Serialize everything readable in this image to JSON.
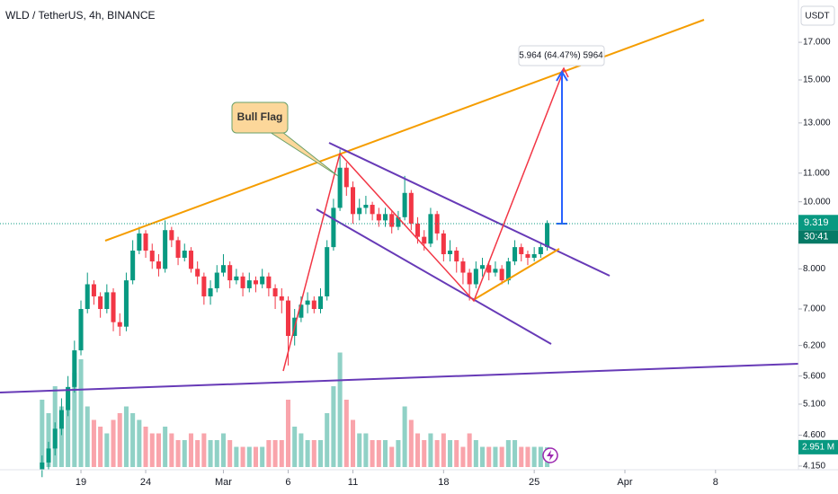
{
  "chart_data": {
    "type": "candlestick",
    "title": "WLD / TetherUS, 4h, BINANCE",
    "currency": "USDT",
    "log_scale": true,
    "grid": false,
    "up_color": "#089981",
    "down_color": "#f23645",
    "annotations": {
      "pattern": "Bull Flag",
      "measure": "5.964 (64.47%) 5964",
      "countdown": "30:41"
    },
    "x": [
      -3,
      -2.5,
      -2,
      -1.5,
      -1,
      -0.5,
      0,
      0.5,
      1,
      1.5,
      2,
      2.5,
      3,
      3.5,
      4,
      4.5,
      5,
      5.5,
      6,
      6.5,
      7,
      7.5,
      8,
      8.5,
      9,
      9.5,
      10,
      10.5,
      11,
      11.5,
      12,
      12.5,
      13,
      13.5,
      14,
      14.5,
      15,
      15.5,
      16,
      16.5,
      17,
      17.5,
      18,
      18.5,
      19,
      19.5,
      20,
      20.5,
      21,
      21.5,
      22,
      22.5,
      23,
      23.5,
      24,
      24.5,
      25,
      25.5,
      26,
      26.5,
      27,
      27.5,
      28,
      28.5,
      29,
      29.5,
      30,
      30.5,
      31,
      31.5,
      32,
      32.5,
      33,
      33.5,
      34,
      34.5,
      35,
      35.5,
      36
    ],
    "open": [
      4.1,
      4.2,
      4.4,
      4.7,
      5.0,
      5.4,
      6.1,
      7.0,
      7.6,
      7.3,
      7.0,
      7.4,
      6.7,
      6.6,
      7.7,
      8.5,
      9.0,
      8.5,
      8.2,
      8.0,
      9.1,
      8.8,
      8.3,
      8.5,
      8.0,
      7.8,
      7.3,
      7.5,
      7.9,
      8.1,
      7.7,
      7.8,
      7.5,
      7.7,
      7.6,
      7.8,
      7.5,
      7.3,
      7.2,
      6.4,
      6.8,
      7.1,
      7.2,
      7.0,
      7.3,
      8.6,
      9.8,
      11.2,
      10.5,
      9.6,
      9.8,
      9.9,
      9.6,
      9.4,
      9.6,
      9.2,
      9.5,
      10.3,
      9.3,
      8.9,
      8.7,
      9.6,
      9.0,
      8.4,
      8.5,
      8.2,
      7.9,
      7.6,
      8.0,
      8.1,
      7.9,
      8.0,
      7.7,
      8.2,
      8.6,
      8.4,
      8.3,
      8.4,
      8.6
    ],
    "high": [
      4.3,
      4.5,
      4.8,
      5.2,
      5.6,
      6.3,
      7.2,
      7.9,
      7.7,
      7.4,
      7.6,
      7.5,
      6.9,
      7.9,
      8.8,
      9.2,
      9.1,
      8.7,
      8.4,
      9.4,
      9.2,
      8.9,
      8.7,
      8.6,
      8.2,
      7.9,
      7.7,
      8.1,
      8.4,
      8.2,
      8.0,
      7.9,
      7.9,
      7.8,
      8.0,
      7.9,
      7.6,
      7.5,
      7.3,
      7.0,
      7.3,
      7.4,
      7.3,
      7.5,
      8.8,
      10.1,
      11.9,
      11.4,
      10.7,
      10.1,
      10.2,
      10.0,
      9.8,
      9.8,
      9.7,
      9.7,
      10.9,
      10.4,
      9.5,
      9.1,
      9.8,
      9.7,
      9.1,
      8.8,
      8.6,
      8.3,
      8.0,
      8.2,
      8.3,
      8.2,
      8.2,
      8.1,
      8.3,
      8.8,
      8.7,
      8.5,
      8.6,
      8.7,
      9.4
    ],
    "low": [
      4.0,
      4.1,
      4.3,
      4.6,
      4.9,
      5.3,
      6.0,
      6.9,
      7.1,
      6.8,
      6.9,
      6.5,
      6.4,
      6.5,
      7.6,
      8.4,
      8.3,
      8.0,
      7.8,
      7.9,
      8.6,
      8.1,
      8.2,
      7.9,
      7.6,
      7.1,
      7.1,
      7.4,
      7.8,
      7.5,
      7.6,
      7.3,
      7.4,
      7.4,
      7.5,
      7.3,
      7.0,
      6.9,
      5.8,
      6.2,
      6.7,
      6.9,
      6.9,
      6.9,
      7.2,
      8.5,
      9.7,
      10.2,
      9.3,
      9.4,
      9.6,
      9.4,
      9.2,
      9.2,
      9.0,
      9.1,
      9.4,
      9.1,
      8.7,
      8.5,
      8.6,
      8.8,
      8.2,
      8.2,
      7.9,
      7.6,
      7.2,
      7.5,
      7.8,
      7.7,
      7.8,
      7.6,
      7.6,
      8.1,
      8.2,
      8.1,
      8.2,
      8.3,
      8.5
    ],
    "close": [
      4.2,
      4.4,
      4.7,
      5.0,
      5.4,
      6.1,
      7.0,
      7.6,
      7.3,
      7.0,
      7.4,
      6.7,
      6.6,
      7.7,
      8.5,
      9.0,
      8.5,
      8.2,
      8.0,
      9.1,
      8.8,
      8.3,
      8.5,
      8.0,
      7.8,
      7.3,
      7.5,
      7.9,
      8.1,
      7.7,
      7.8,
      7.5,
      7.7,
      7.6,
      7.8,
      7.5,
      7.3,
      7.2,
      6.4,
      6.8,
      7.1,
      7.2,
      7.0,
      7.3,
      8.6,
      9.8,
      11.2,
      10.5,
      9.6,
      9.8,
      9.9,
      9.6,
      9.4,
      9.6,
      9.2,
      9.5,
      10.3,
      9.3,
      8.9,
      8.7,
      9.6,
      9.0,
      8.4,
      8.5,
      8.2,
      7.9,
      7.6,
      8.0,
      8.1,
      7.9,
      8.0,
      7.7,
      8.2,
      8.6,
      8.4,
      8.3,
      8.4,
      8.6,
      9.319
    ],
    "volume": [
      10,
      8,
      12,
      9,
      11,
      14,
      16,
      9,
      7,
      6,
      5,
      7,
      8,
      9,
      8,
      7,
      6,
      5,
      5,
      6,
      5,
      4,
      4,
      5,
      4,
      5,
      4,
      4,
      5,
      4,
      3,
      3,
      3,
      3,
      3,
      4,
      4,
      4,
      10,
      6,
      5,
      4,
      4,
      4,
      8,
      12,
      17,
      10,
      7,
      5,
      5,
      4,
      4,
      4,
      3,
      4,
      9,
      7,
      5,
      4,
      5,
      4,
      5,
      4,
      4,
      3,
      5,
      4,
      3,
      3,
      3,
      3,
      4,
      4,
      3,
      3,
      3,
      3,
      2.951
    ],
    "volume_value_label": "2.951 M",
    "vlim": [
      0,
      20
    ],
    "xlim": [
      -6.25,
      55.4
    ],
    "xticks": [
      {
        "value": 0,
        "label": "19"
      },
      {
        "value": 5,
        "label": "24"
      },
      {
        "value": 11,
        "label": "Mar"
      },
      {
        "value": 16,
        "label": "6"
      },
      {
        "value": 21,
        "label": "11"
      },
      {
        "value": 28,
        "label": "18"
      },
      {
        "value": 35,
        "label": "25"
      },
      {
        "value": 42,
        "label": "Apr"
      },
      {
        "value": 49,
        "label": "8"
      }
    ],
    "ylim": [
      4.1,
      19.57
    ],
    "yticks": [
      {
        "value": 17,
        "label": "17.000"
      },
      {
        "value": 15,
        "label": "15.000"
      },
      {
        "value": 13,
        "label": "13.000"
      },
      {
        "value": 11,
        "label": "11.000"
      },
      {
        "value": 10,
        "label": "10.000"
      },
      {
        "value": 8,
        "label": "8.000"
      },
      {
        "value": 7,
        "label": "7.000"
      },
      {
        "value": 6.2,
        "label": "6.200"
      },
      {
        "value": 5.6,
        "label": "5.600"
      },
      {
        "value": 5.1,
        "label": "5.100"
      },
      {
        "value": 4.6,
        "label": "4.600"
      },
      {
        "value": 4.15,
        "label": "4.150"
      }
    ]
  }
}
